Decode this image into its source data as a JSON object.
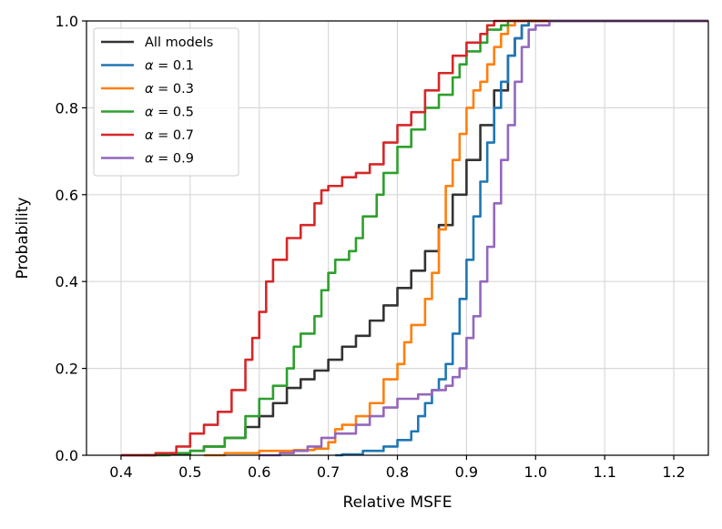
{
  "chart_data": {
    "type": "line",
    "title": "",
    "xlabel": "Relative MSFE",
    "ylabel": "Probability",
    "xlim": [
      0.35,
      1.25
    ],
    "ylim": [
      0.0,
      1.0
    ],
    "xticks": [
      0.4,
      0.5,
      0.6,
      0.7,
      0.8,
      0.9,
      1.0,
      1.1,
      1.2
    ],
    "xtick_labels": [
      "0.4",
      "0.5",
      "0.6",
      "0.7",
      "0.8",
      "0.9",
      "1.0",
      "1.1",
      "1.2"
    ],
    "yticks": [
      0.0,
      0.2,
      0.4,
      0.6,
      0.8,
      1.0
    ],
    "ytick_labels": [
      "0.0",
      "0.2",
      "0.4",
      "0.6",
      "0.8",
      "1.0"
    ],
    "grid": true,
    "legend_position": "top-left",
    "series": [
      {
        "name": "All models",
        "legend_label": "All models",
        "color": "#333333",
        "points": [
          [
            0.4,
            0.0
          ],
          [
            0.45,
            0.003
          ],
          [
            0.5,
            0.01
          ],
          [
            0.52,
            0.02
          ],
          [
            0.55,
            0.04
          ],
          [
            0.58,
            0.065
          ],
          [
            0.6,
            0.09
          ],
          [
            0.62,
            0.12
          ],
          [
            0.64,
            0.155
          ],
          [
            0.66,
            0.175
          ],
          [
            0.68,
            0.195
          ],
          [
            0.7,
            0.22
          ],
          [
            0.72,
            0.25
          ],
          [
            0.74,
            0.275
          ],
          [
            0.76,
            0.31
          ],
          [
            0.78,
            0.345
          ],
          [
            0.8,
            0.385
          ],
          [
            0.82,
            0.425
          ],
          [
            0.84,
            0.47
          ],
          [
            0.86,
            0.53
          ],
          [
            0.88,
            0.6
          ],
          [
            0.9,
            0.68
          ],
          [
            0.92,
            0.76
          ],
          [
            0.94,
            0.84
          ],
          [
            0.96,
            0.92
          ],
          [
            0.97,
            0.96
          ],
          [
            0.98,
            0.99
          ],
          [
            0.99,
            1.0
          ],
          [
            1.25,
            1.0
          ]
        ]
      },
      {
        "name": "alpha = 0.1",
        "legend_prefix": "α",
        "legend_value": " = 0.1",
        "color": "#1f77b4",
        "points": [
          [
            0.71,
            0.0
          ],
          [
            0.72,
            0.002
          ],
          [
            0.75,
            0.01
          ],
          [
            0.78,
            0.02
          ],
          [
            0.8,
            0.035
          ],
          [
            0.82,
            0.055
          ],
          [
            0.83,
            0.09
          ],
          [
            0.84,
            0.12
          ],
          [
            0.85,
            0.15
          ],
          [
            0.86,
            0.175
          ],
          [
            0.87,
            0.21
          ],
          [
            0.88,
            0.28
          ],
          [
            0.89,
            0.36
          ],
          [
            0.9,
            0.45
          ],
          [
            0.91,
            0.55
          ],
          [
            0.92,
            0.63
          ],
          [
            0.93,
            0.72
          ],
          [
            0.94,
            0.8
          ],
          [
            0.95,
            0.86
          ],
          [
            0.96,
            0.92
          ],
          [
            0.97,
            0.96
          ],
          [
            0.98,
            0.99
          ],
          [
            0.99,
            1.0
          ],
          [
            1.25,
            1.0
          ]
        ]
      },
      {
        "name": "alpha = 0.3",
        "legend_prefix": "α",
        "legend_value": " = 0.3",
        "color": "#ff7f0e",
        "points": [
          [
            0.52,
            0.0
          ],
          [
            0.55,
            0.005
          ],
          [
            0.6,
            0.01
          ],
          [
            0.65,
            0.012
          ],
          [
            0.68,
            0.015
          ],
          [
            0.7,
            0.03
          ],
          [
            0.71,
            0.06
          ],
          [
            0.72,
            0.07
          ],
          [
            0.74,
            0.09
          ],
          [
            0.76,
            0.12
          ],
          [
            0.78,
            0.175
          ],
          [
            0.8,
            0.21
          ],
          [
            0.81,
            0.26
          ],
          [
            0.82,
            0.3
          ],
          [
            0.84,
            0.36
          ],
          [
            0.85,
            0.42
          ],
          [
            0.86,
            0.52
          ],
          [
            0.87,
            0.62
          ],
          [
            0.88,
            0.68
          ],
          [
            0.89,
            0.74
          ],
          [
            0.9,
            0.8
          ],
          [
            0.91,
            0.84
          ],
          [
            0.92,
            0.86
          ],
          [
            0.93,
            0.9
          ],
          [
            0.94,
            0.94
          ],
          [
            0.95,
            0.97
          ],
          [
            0.96,
            0.99
          ],
          [
            0.97,
            1.0
          ],
          [
            1.25,
            1.0
          ]
        ]
      },
      {
        "name": "alpha = 0.5",
        "legend_prefix": "α",
        "legend_value": " = 0.5",
        "color": "#2ca02c",
        "points": [
          [
            0.43,
            0.0
          ],
          [
            0.47,
            0.005
          ],
          [
            0.5,
            0.01
          ],
          [
            0.52,
            0.02
          ],
          [
            0.55,
            0.04
          ],
          [
            0.58,
            0.09
          ],
          [
            0.6,
            0.13
          ],
          [
            0.62,
            0.16
          ],
          [
            0.64,
            0.2
          ],
          [
            0.65,
            0.25
          ],
          [
            0.66,
            0.28
          ],
          [
            0.68,
            0.32
          ],
          [
            0.69,
            0.38
          ],
          [
            0.7,
            0.42
          ],
          [
            0.71,
            0.45
          ],
          [
            0.73,
            0.47
          ],
          [
            0.74,
            0.5
          ],
          [
            0.75,
            0.55
          ],
          [
            0.77,
            0.6
          ],
          [
            0.78,
            0.65
          ],
          [
            0.8,
            0.71
          ],
          [
            0.82,
            0.75
          ],
          [
            0.84,
            0.8
          ],
          [
            0.86,
            0.83
          ],
          [
            0.88,
            0.87
          ],
          [
            0.89,
            0.9
          ],
          [
            0.9,
            0.93
          ],
          [
            0.92,
            0.95
          ],
          [
            0.93,
            0.98
          ],
          [
            0.95,
            0.99
          ],
          [
            0.96,
            1.0
          ],
          [
            1.25,
            1.0
          ]
        ]
      },
      {
        "name": "alpha = 0.7",
        "legend_prefix": "α",
        "legend_value": " = 0.7",
        "color": "#d62728",
        "points": [
          [
            0.4,
            0.0
          ],
          [
            0.45,
            0.005
          ],
          [
            0.48,
            0.02
          ],
          [
            0.5,
            0.05
          ],
          [
            0.52,
            0.07
          ],
          [
            0.54,
            0.1
          ],
          [
            0.56,
            0.15
          ],
          [
            0.58,
            0.22
          ],
          [
            0.59,
            0.27
          ],
          [
            0.6,
            0.33
          ],
          [
            0.61,
            0.4
          ],
          [
            0.62,
            0.45
          ],
          [
            0.64,
            0.5
          ],
          [
            0.66,
            0.53
          ],
          [
            0.68,
            0.58
          ],
          [
            0.69,
            0.61
          ],
          [
            0.7,
            0.62
          ],
          [
            0.72,
            0.64
          ],
          [
            0.74,
            0.65
          ],
          [
            0.76,
            0.67
          ],
          [
            0.78,
            0.72
          ],
          [
            0.8,
            0.76
          ],
          [
            0.82,
            0.79
          ],
          [
            0.84,
            0.84
          ],
          [
            0.86,
            0.88
          ],
          [
            0.88,
            0.92
          ],
          [
            0.9,
            0.95
          ],
          [
            0.92,
            0.97
          ],
          [
            0.93,
            0.99
          ],
          [
            0.94,
            1.0
          ],
          [
            1.25,
            1.0
          ]
        ]
      },
      {
        "name": "alpha = 0.9",
        "legend_prefix": "α",
        "legend_value": " = 0.9",
        "color": "#9467bd",
        "points": [
          [
            0.6,
            0.0
          ],
          [
            0.63,
            0.005
          ],
          [
            0.65,
            0.01
          ],
          [
            0.67,
            0.02
          ],
          [
            0.69,
            0.04
          ],
          [
            0.71,
            0.05
          ],
          [
            0.74,
            0.07
          ],
          [
            0.76,
            0.09
          ],
          [
            0.78,
            0.11
          ],
          [
            0.8,
            0.13
          ],
          [
            0.83,
            0.14
          ],
          [
            0.85,
            0.15
          ],
          [
            0.87,
            0.16
          ],
          [
            0.88,
            0.18
          ],
          [
            0.89,
            0.2
          ],
          [
            0.9,
            0.27
          ],
          [
            0.91,
            0.32
          ],
          [
            0.92,
            0.4
          ],
          [
            0.93,
            0.48
          ],
          [
            0.94,
            0.58
          ],
          [
            0.95,
            0.68
          ],
          [
            0.96,
            0.76
          ],
          [
            0.97,
            0.86
          ],
          [
            0.98,
            0.94
          ],
          [
            0.99,
            0.98
          ],
          [
            1.0,
            0.99
          ],
          [
            1.02,
            1.0
          ],
          [
            1.25,
            1.0
          ]
        ]
      }
    ]
  }
}
